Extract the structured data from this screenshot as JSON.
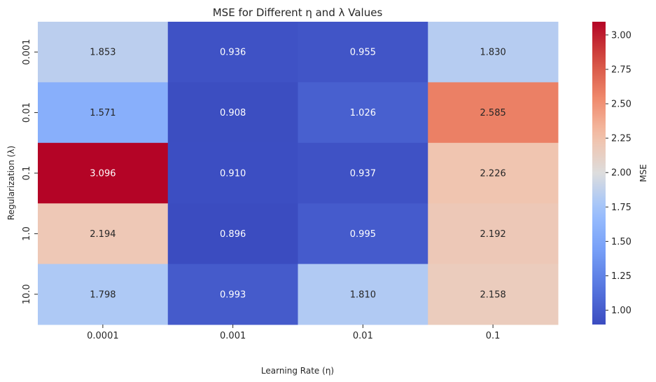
{
  "chart_data": {
    "type": "heatmap",
    "title": "MSE for Different η and λ Values",
    "xlabel": "Learning Rate (η)",
    "ylabel": "Regularization (λ)",
    "x_categories": [
      "0.0001",
      "0.001",
      "0.01",
      "0.1"
    ],
    "y_categories": [
      "0.001",
      "0.01",
      "0.1",
      "1.0",
      "10.0"
    ],
    "values": [
      [
        1.853,
        0.936,
        0.955,
        1.83
      ],
      [
        1.571,
        0.908,
        1.026,
        2.585
      ],
      [
        3.096,
        0.91,
        0.937,
        2.226
      ],
      [
        2.194,
        0.896,
        0.995,
        2.192
      ],
      [
        1.798,
        0.993,
        1.81,
        2.158
      ]
    ],
    "annotations_format": "0.000",
    "colormap": "coolwarm",
    "colorbar": {
      "label": "MSE",
      "range": [
        0.896,
        3.096
      ],
      "ticks": [
        "1.00",
        "1.25",
        "1.50",
        "1.75",
        "2.00",
        "2.25",
        "2.50",
        "2.75",
        "3.00"
      ]
    }
  }
}
